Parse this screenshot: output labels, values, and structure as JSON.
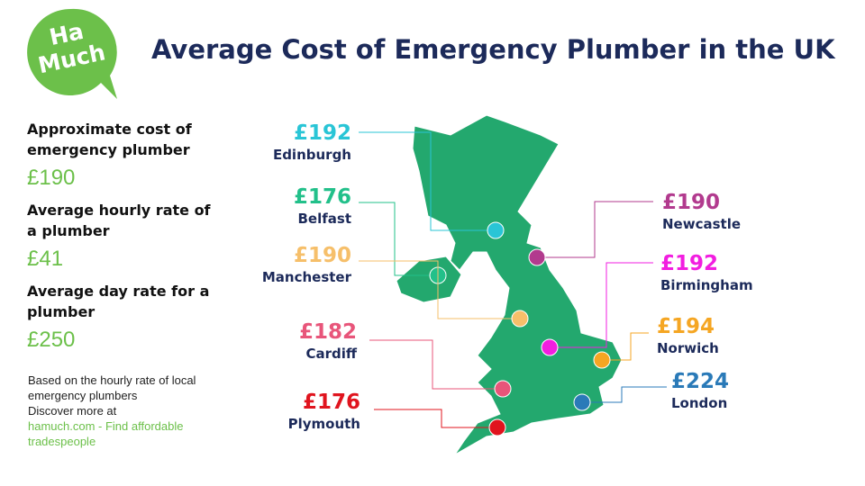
{
  "logo": {
    "line1": "Ha",
    "line2": "Much"
  },
  "title": "Average Cost of Emergency Plumber in the UK",
  "stats": [
    {
      "label": "Approximate cost of emergency plumber",
      "value": "£190"
    },
    {
      "label": "Average hourly rate of a plumber",
      "value": "£41"
    },
    {
      "label": "Average day rate for a plumber",
      "value": "£250"
    }
  ],
  "note": {
    "text": "Based on the hourly rate of local emergency plumbers",
    "discover": "Discover more at",
    "link": "hamuch.com - Find affordable tradespeople"
  },
  "cities": [
    {
      "name": "Edinburgh",
      "price": "£192",
      "color": "#29c5d6"
    },
    {
      "name": "Belfast",
      "price": "£176",
      "color": "#22c08a"
    },
    {
      "name": "Manchester",
      "price": "£190",
      "color": "#f6bf6a"
    },
    {
      "name": "Cardiff",
      "price": "£182",
      "color": "#e8557a"
    },
    {
      "name": "Plymouth",
      "price": "£176",
      "color": "#e0141e"
    },
    {
      "name": "Newcastle",
      "price": "£190",
      "color": "#b23a8e"
    },
    {
      "name": "Birmingham",
      "price": "£192",
      "color": "#f21ee0"
    },
    {
      "name": "Norwich",
      "price": "£194",
      "color": "#f5a623"
    },
    {
      "name": "London",
      "price": "£224",
      "color": "#2a7ab8"
    }
  ]
}
